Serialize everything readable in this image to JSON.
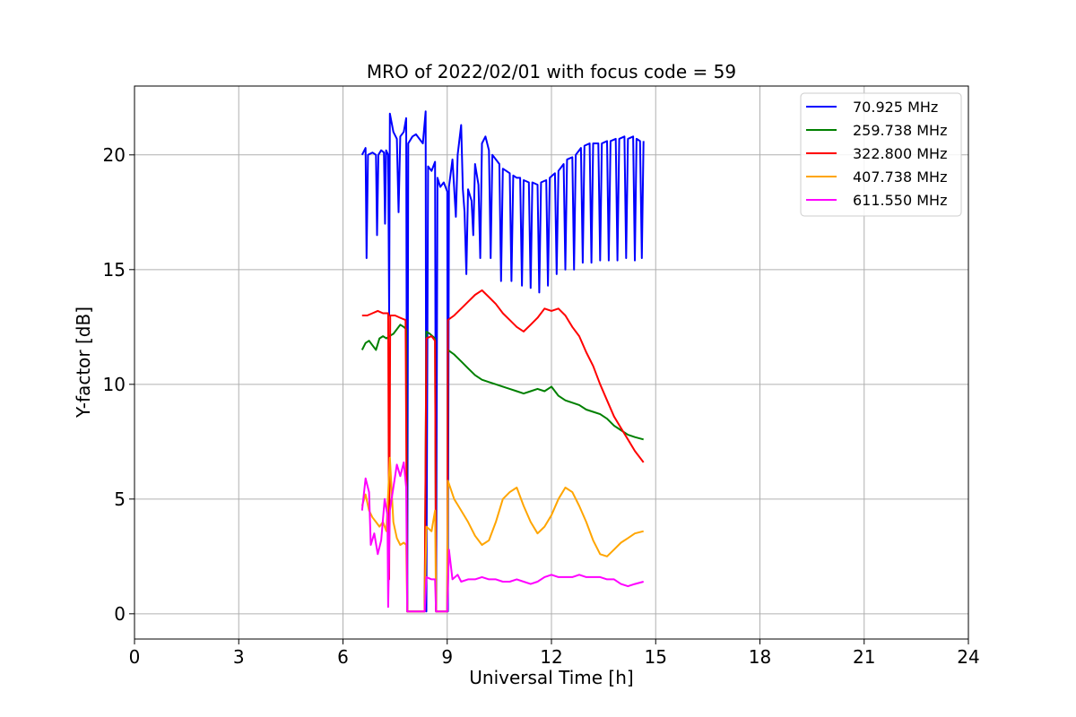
{
  "chart_data": {
    "type": "line",
    "title": "MRO of 2022/02/01 with focus code = 59",
    "xlabel": "Universal Time [h]",
    "ylabel": "Y-factor [dB]",
    "xlim": [
      0,
      24
    ],
    "ylim": [
      -1.1,
      23.0
    ],
    "xticks": [
      0,
      3,
      6,
      9,
      12,
      15,
      18,
      21,
      24
    ],
    "yticks": [
      0,
      5,
      10,
      15,
      20
    ],
    "grid": true,
    "legend_position": "top-right",
    "series": [
      {
        "name": "  70.925 MHz",
        "color": "#0000ff",
        "points": [
          [
            6.55,
            20.0
          ],
          [
            6.65,
            20.3
          ],
          [
            6.68,
            15.5
          ],
          [
            6.72,
            20.0
          ],
          [
            6.85,
            20.1
          ],
          [
            6.95,
            20.0
          ],
          [
            6.98,
            16.5
          ],
          [
            7.02,
            20.0
          ],
          [
            7.1,
            20.2
          ],
          [
            7.18,
            20.1
          ],
          [
            7.21,
            17.0
          ],
          [
            7.24,
            20.2
          ],
          [
            7.3,
            20.0
          ],
          [
            7.33,
            13.0
          ],
          [
            7.35,
            21.8
          ],
          [
            7.45,
            21.0
          ],
          [
            7.55,
            20.7
          ],
          [
            7.6,
            17.5
          ],
          [
            7.65,
            20.8
          ],
          [
            7.75,
            21.0
          ],
          [
            7.82,
            21.6
          ],
          [
            7.85,
            0.1
          ],
          [
            7.88,
            20.5
          ],
          [
            8.0,
            20.8
          ],
          [
            8.1,
            20.9
          ],
          [
            8.2,
            20.7
          ],
          [
            8.3,
            20.5
          ],
          [
            8.38,
            21.9
          ],
          [
            8.4,
            0.1
          ],
          [
            8.45,
            19.5
          ],
          [
            8.55,
            19.3
          ],
          [
            8.65,
            19.7
          ],
          [
            8.68,
            0.1
          ],
          [
            8.72,
            19.0
          ],
          [
            8.8,
            18.6
          ],
          [
            8.9,
            18.8
          ],
          [
            9.0,
            18.4
          ],
          [
            9.02,
            0.1
          ],
          [
            9.05,
            18.6
          ],
          [
            9.15,
            19.8
          ],
          [
            9.25,
            17.3
          ],
          [
            9.3,
            20.0
          ],
          [
            9.4,
            21.3
          ],
          [
            9.45,
            18.5
          ],
          [
            9.5,
            17.5
          ],
          [
            9.55,
            14.8
          ],
          [
            9.6,
            18.5
          ],
          [
            9.7,
            18.0
          ],
          [
            9.75,
            16.5
          ],
          [
            9.8,
            19.6
          ],
          [
            9.9,
            18.7
          ],
          [
            9.95,
            15.5
          ],
          [
            10.0,
            20.5
          ],
          [
            10.1,
            20.8
          ],
          [
            10.2,
            20.2
          ],
          [
            10.25,
            15.5
          ],
          [
            10.3,
            20.0
          ],
          [
            10.4,
            19.8
          ],
          [
            10.5,
            19.6
          ],
          [
            10.55,
            14.5
          ],
          [
            10.6,
            19.4
          ],
          [
            10.7,
            19.3
          ],
          [
            10.8,
            19.2
          ],
          [
            10.85,
            14.5
          ],
          [
            10.9,
            19.1
          ],
          [
            11.0,
            19.0
          ],
          [
            11.1,
            19.0
          ],
          [
            11.15,
            14.3
          ],
          [
            11.2,
            18.9
          ],
          [
            11.35,
            18.8
          ],
          [
            11.4,
            14.2
          ],
          [
            11.45,
            18.8
          ],
          [
            11.6,
            18.7
          ],
          [
            11.65,
            14.0
          ],
          [
            11.7,
            18.8
          ],
          [
            11.85,
            18.9
          ],
          [
            11.9,
            14.3
          ],
          [
            11.95,
            19.0
          ],
          [
            12.1,
            19.2
          ],
          [
            12.15,
            14.8
          ],
          [
            12.2,
            19.3
          ],
          [
            12.35,
            19.6
          ],
          [
            12.4,
            15.0
          ],
          [
            12.45,
            19.8
          ],
          [
            12.6,
            19.9
          ],
          [
            12.65,
            15.0
          ],
          [
            12.7,
            20.0
          ],
          [
            12.85,
            20.3
          ],
          [
            12.9,
            15.3
          ],
          [
            12.95,
            20.4
          ],
          [
            13.1,
            20.5
          ],
          [
            13.15,
            15.3
          ],
          [
            13.2,
            20.5
          ],
          [
            13.35,
            20.5
          ],
          [
            13.4,
            15.4
          ],
          [
            13.45,
            20.5
          ],
          [
            13.6,
            20.6
          ],
          [
            13.65,
            15.4
          ],
          [
            13.7,
            20.6
          ],
          [
            13.85,
            20.7
          ],
          [
            13.9,
            15.4
          ],
          [
            13.95,
            20.7
          ],
          [
            14.1,
            20.8
          ],
          [
            14.15,
            15.5
          ],
          [
            14.2,
            20.7
          ],
          [
            14.35,
            20.8
          ],
          [
            14.4,
            15.4
          ],
          [
            14.45,
            20.7
          ],
          [
            14.55,
            20.6
          ],
          [
            14.6,
            15.5
          ],
          [
            14.65,
            20.6
          ]
        ]
      },
      {
        "name": "259.738 MHz",
        "color": "#008000",
        "points": [
          [
            6.55,
            11.5
          ],
          [
            6.65,
            11.8
          ],
          [
            6.75,
            11.9
          ],
          [
            6.85,
            11.7
          ],
          [
            6.95,
            11.5
          ],
          [
            7.05,
            12.0
          ],
          [
            7.15,
            12.1
          ],
          [
            7.25,
            12.0
          ],
          [
            7.33,
            12.1
          ],
          [
            7.45,
            12.2
          ],
          [
            7.55,
            12.4
          ],
          [
            7.65,
            12.6
          ],
          [
            7.75,
            12.5
          ],
          [
            7.82,
            12.4
          ],
          [
            7.85,
            0.1
          ],
          [
            8.35,
            0.1
          ],
          [
            8.4,
            12.3
          ],
          [
            8.5,
            12.2
          ],
          [
            8.65,
            12.0
          ],
          [
            8.68,
            0.1
          ],
          [
            9.0,
            0.1
          ],
          [
            9.02,
            11.5
          ],
          [
            9.2,
            11.3
          ],
          [
            9.4,
            11.0
          ],
          [
            9.6,
            10.7
          ],
          [
            9.8,
            10.4
          ],
          [
            10.0,
            10.2
          ],
          [
            10.2,
            10.1
          ],
          [
            10.4,
            10.0
          ],
          [
            10.6,
            9.9
          ],
          [
            10.8,
            9.8
          ],
          [
            11.0,
            9.7
          ],
          [
            11.2,
            9.6
          ],
          [
            11.4,
            9.7
          ],
          [
            11.6,
            9.8
          ],
          [
            11.8,
            9.7
          ],
          [
            12.0,
            9.9
          ],
          [
            12.2,
            9.5
          ],
          [
            12.4,
            9.3
          ],
          [
            12.6,
            9.2
          ],
          [
            12.8,
            9.1
          ],
          [
            13.0,
            8.9
          ],
          [
            13.2,
            8.8
          ],
          [
            13.4,
            8.7
          ],
          [
            13.6,
            8.5
          ],
          [
            13.8,
            8.2
          ],
          [
            14.0,
            8.0
          ],
          [
            14.2,
            7.8
          ],
          [
            14.4,
            7.7
          ],
          [
            14.65,
            7.6
          ]
        ]
      },
      {
        "name": "322.800 MHz",
        "color": "#ff0000",
        "points": [
          [
            6.55,
            13.0
          ],
          [
            6.7,
            13.0
          ],
          [
            6.85,
            13.1
          ],
          [
            7.0,
            13.2
          ],
          [
            7.15,
            13.1
          ],
          [
            7.3,
            13.1
          ],
          [
            7.33,
            1.5
          ],
          [
            7.36,
            13.0
          ],
          [
            7.5,
            13.0
          ],
          [
            7.65,
            12.9
          ],
          [
            7.8,
            12.8
          ],
          [
            7.85,
            0.1
          ],
          [
            8.35,
            0.1
          ],
          [
            8.4,
            12.0
          ],
          [
            8.55,
            12.1
          ],
          [
            8.65,
            11.9
          ],
          [
            8.68,
            0.1
          ],
          [
            9.0,
            0.1
          ],
          [
            9.02,
            12.8
          ],
          [
            9.2,
            13.0
          ],
          [
            9.4,
            13.3
          ],
          [
            9.6,
            13.6
          ],
          [
            9.8,
            13.9
          ],
          [
            10.0,
            14.1
          ],
          [
            10.2,
            13.8
          ],
          [
            10.4,
            13.5
          ],
          [
            10.6,
            13.1
          ],
          [
            10.8,
            12.8
          ],
          [
            11.0,
            12.5
          ],
          [
            11.2,
            12.3
          ],
          [
            11.4,
            12.6
          ],
          [
            11.6,
            12.9
          ],
          [
            11.8,
            13.3
          ],
          [
            12.0,
            13.2
          ],
          [
            12.2,
            13.3
          ],
          [
            12.4,
            13.0
          ],
          [
            12.6,
            12.5
          ],
          [
            12.8,
            12.1
          ],
          [
            13.0,
            11.4
          ],
          [
            13.2,
            10.8
          ],
          [
            13.4,
            10.0
          ],
          [
            13.6,
            9.3
          ],
          [
            13.8,
            8.6
          ],
          [
            14.0,
            8.1
          ],
          [
            14.2,
            7.6
          ],
          [
            14.4,
            7.1
          ],
          [
            14.65,
            6.6
          ]
        ]
      },
      {
        "name": "407.738 MHz",
        "color": "#ffa500",
        "points": [
          [
            6.55,
            4.7
          ],
          [
            6.65,
            5.2
          ],
          [
            6.75,
            4.5
          ],
          [
            6.85,
            4.2
          ],
          [
            6.95,
            4.0
          ],
          [
            7.05,
            3.8
          ],
          [
            7.15,
            4.0
          ],
          [
            7.25,
            3.6
          ],
          [
            7.35,
            6.8
          ],
          [
            7.45,
            4.0
          ],
          [
            7.55,
            3.3
          ],
          [
            7.65,
            3.0
          ],
          [
            7.75,
            3.1
          ],
          [
            7.82,
            3.0
          ],
          [
            7.85,
            0.1
          ],
          [
            8.35,
            0.1
          ],
          [
            8.4,
            3.8
          ],
          [
            8.55,
            3.6
          ],
          [
            8.65,
            4.5
          ],
          [
            8.68,
            0.1
          ],
          [
            9.0,
            0.1
          ],
          [
            9.02,
            5.8
          ],
          [
            9.2,
            5.0
          ],
          [
            9.4,
            4.5
          ],
          [
            9.6,
            4.0
          ],
          [
            9.8,
            3.4
          ],
          [
            10.0,
            3.0
          ],
          [
            10.2,
            3.2
          ],
          [
            10.4,
            4.0
          ],
          [
            10.6,
            5.0
          ],
          [
            10.8,
            5.3
          ],
          [
            11.0,
            5.5
          ],
          [
            11.2,
            4.7
          ],
          [
            11.4,
            4.0
          ],
          [
            11.6,
            3.5
          ],
          [
            11.8,
            3.8
          ],
          [
            12.0,
            4.3
          ],
          [
            12.2,
            5.0
          ],
          [
            12.4,
            5.5
          ],
          [
            12.6,
            5.3
          ],
          [
            12.8,
            4.7
          ],
          [
            13.0,
            4.0
          ],
          [
            13.2,
            3.2
          ],
          [
            13.4,
            2.6
          ],
          [
            13.6,
            2.5
          ],
          [
            13.8,
            2.8
          ],
          [
            14.0,
            3.1
          ],
          [
            14.2,
            3.3
          ],
          [
            14.4,
            3.5
          ],
          [
            14.65,
            3.6
          ]
        ]
      },
      {
        "name": "611.550 MHz",
        "color": "#ff00ff",
        "points": [
          [
            6.55,
            4.5
          ],
          [
            6.65,
            5.9
          ],
          [
            6.75,
            5.3
          ],
          [
            6.8,
            3.0
          ],
          [
            6.9,
            3.5
          ],
          [
            7.0,
            2.6
          ],
          [
            7.1,
            3.2
          ],
          [
            7.2,
            5.0
          ],
          [
            7.28,
            4.3
          ],
          [
            7.3,
            0.3
          ],
          [
            7.35,
            4.5
          ],
          [
            7.45,
            5.5
          ],
          [
            7.55,
            6.5
          ],
          [
            7.65,
            6.0
          ],
          [
            7.75,
            6.6
          ],
          [
            7.82,
            5.5
          ],
          [
            7.85,
            0.1
          ],
          [
            8.35,
            0.1
          ],
          [
            8.4,
            1.6
          ],
          [
            8.55,
            1.5
          ],
          [
            8.65,
            1.5
          ],
          [
            8.68,
            0.1
          ],
          [
            9.0,
            0.1
          ],
          [
            9.05,
            2.8
          ],
          [
            9.15,
            1.5
          ],
          [
            9.3,
            1.7
          ],
          [
            9.4,
            1.4
          ],
          [
            9.6,
            1.5
          ],
          [
            9.8,
            1.5
          ],
          [
            10.0,
            1.6
          ],
          [
            10.2,
            1.5
          ],
          [
            10.4,
            1.5
          ],
          [
            10.6,
            1.4
          ],
          [
            10.8,
            1.4
          ],
          [
            11.0,
            1.5
          ],
          [
            11.2,
            1.4
          ],
          [
            11.4,
            1.3
          ],
          [
            11.6,
            1.4
          ],
          [
            11.8,
            1.6
          ],
          [
            12.0,
            1.7
          ],
          [
            12.2,
            1.6
          ],
          [
            12.4,
            1.6
          ],
          [
            12.6,
            1.6
          ],
          [
            12.8,
            1.7
          ],
          [
            13.0,
            1.6
          ],
          [
            13.2,
            1.6
          ],
          [
            13.4,
            1.6
          ],
          [
            13.6,
            1.5
          ],
          [
            13.8,
            1.5
          ],
          [
            14.0,
            1.3
          ],
          [
            14.2,
            1.2
          ],
          [
            14.4,
            1.3
          ],
          [
            14.65,
            1.4
          ]
        ]
      }
    ]
  }
}
